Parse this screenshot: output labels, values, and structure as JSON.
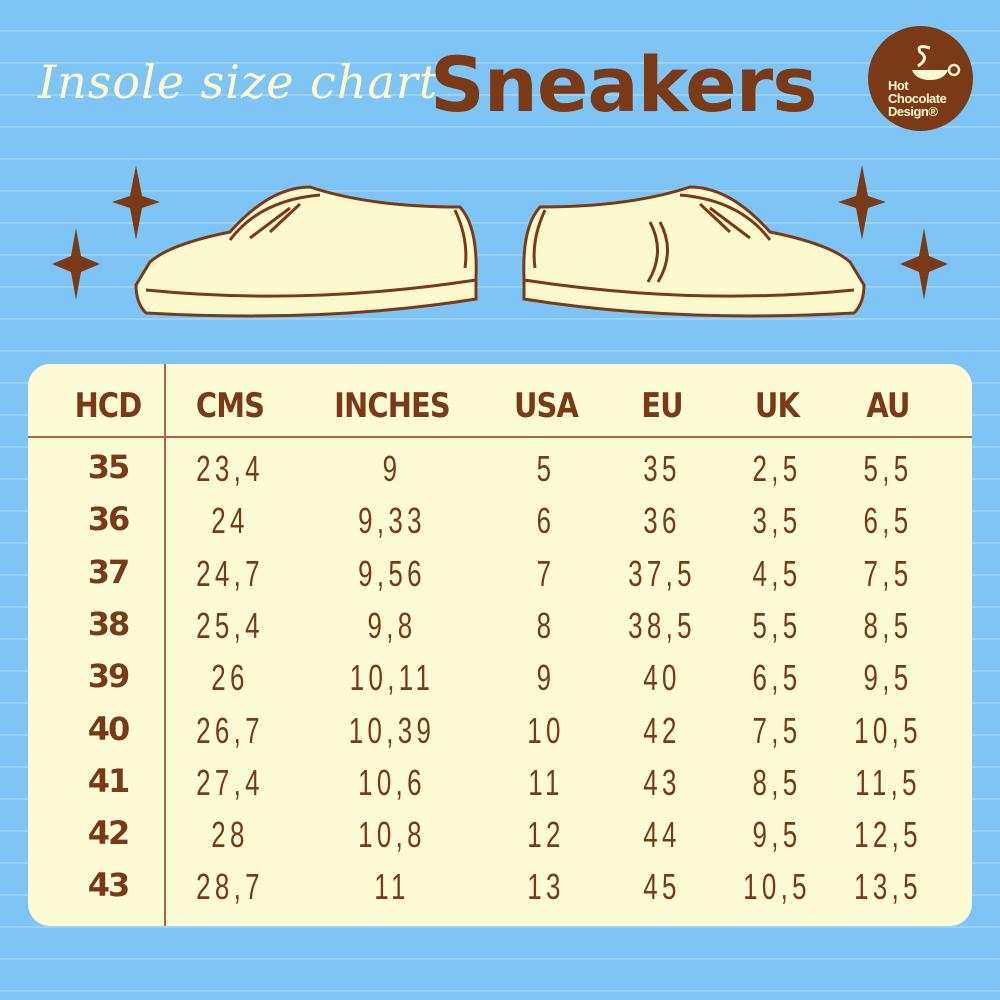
{
  "header": {
    "subtitle": "Insole size chart",
    "title": "Sneakers",
    "logo": {
      "lines": [
        "Hot",
        "Chocolate",
        "Design®"
      ],
      "icon": "cup-icon"
    }
  },
  "colors": {
    "background": "#7ec5f6",
    "panel": "#fdfbd4",
    "brown": "#7a3a18",
    "cream": "#fdf9cf"
  },
  "table": {
    "columns": [
      "HCD",
      "CMS",
      "INCHES",
      "USA",
      "EU",
      "UK",
      "AU"
    ],
    "rows": [
      [
        "35",
        "23,4",
        "9",
        "5",
        "35",
        "2,5",
        "5,5"
      ],
      [
        "36",
        "24",
        "9,33",
        "6",
        "36",
        "3,5",
        "6,5"
      ],
      [
        "37",
        "24,7",
        "9,56",
        "7",
        "37,5",
        "4,5",
        "7,5"
      ],
      [
        "38",
        "25,4",
        "9,8",
        "8",
        "38,5",
        "5,5",
        "8,5"
      ],
      [
        "39",
        "26",
        "10,11",
        "9",
        "40",
        "6,5",
        "9,5"
      ],
      [
        "40",
        "26,7",
        "10,39",
        "10",
        "42",
        "7,5",
        "10,5"
      ],
      [
        "41",
        "27,4",
        "10,6",
        "11",
        "43",
        "8,5",
        "11,5"
      ],
      [
        "42",
        "28",
        "10,8",
        "12",
        "44",
        "9,5",
        "12,5"
      ],
      [
        "43",
        "28,7",
        "11",
        "13",
        "45",
        "10,5",
        "13,5"
      ]
    ]
  }
}
